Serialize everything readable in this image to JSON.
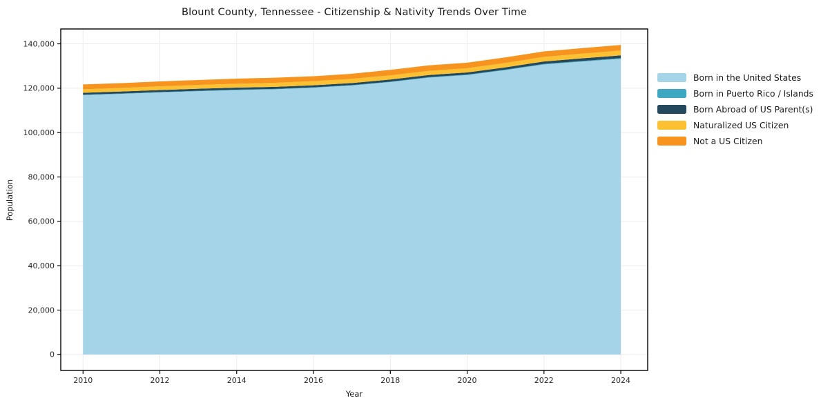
{
  "chart": {
    "title": "Blount County, Tennessee - Citizenship & Nativity Trends Over Time",
    "xlabel": "Year",
    "ylabel": "Population"
  },
  "chart_data": {
    "type": "area",
    "stacked": true,
    "title": "Blount County, Tennessee - Citizenship & Nativity Trends Over Time",
    "xlabel": "Year",
    "ylabel": "Population",
    "x": [
      2010,
      2011,
      2012,
      2013,
      2014,
      2015,
      2016,
      2017,
      2018,
      2019,
      2020,
      2021,
      2022,
      2023,
      2024
    ],
    "series": [
      {
        "name": "Born in the United States",
        "color": "#a5d3e8",
        "values": [
          116900,
          117450,
          118100,
          118650,
          119150,
          119500,
          120200,
          121200,
          122750,
          124750,
          125900,
          128150,
          130700,
          132000,
          133250
        ]
      },
      {
        "name": "Born in Puerto Rico / Islands",
        "color": "#3ea8c2",
        "values": [
          150,
          160,
          170,
          180,
          190,
          200,
          200,
          210,
          220,
          230,
          240,
          250,
          260,
          280,
          300
        ]
      },
      {
        "name": "Born Abroad of US Parent(s)",
        "color": "#25495c",
        "values": [
          900,
          900,
          920,
          930,
          930,
          930,
          930,
          940,
          950,
          960,
          980,
          1000,
          1100,
          1200,
          1250
        ]
      },
      {
        "name": "Naturalized US Citizen",
        "color": "#fcc133",
        "values": [
          1550,
          1600,
          1650,
          1700,
          1750,
          1800,
          1870,
          1870,
          1870,
          1870,
          1900,
          2000,
          2050,
          2100,
          2200
        ]
      },
      {
        "name": "Not a US Citizen",
        "color": "#f7941f",
        "values": [
          2200,
          2200,
          2250,
          2250,
          2300,
          2300,
          2200,
          2300,
          2500,
          2500,
          2500,
          2500,
          2500,
          2500,
          2500
        ]
      }
    ],
    "xticks": [
      2010,
      2012,
      2014,
      2016,
      2018,
      2020,
      2022,
      2024
    ],
    "yticks": [
      0,
      20000,
      40000,
      60000,
      80000,
      100000,
      120000,
      140000
    ],
    "xlim": [
      2009.42,
      2024.7
    ],
    "ylim": [
      -7200,
      146700
    ],
    "grid": true,
    "legend_position": "right",
    "colors": {
      "grid": "#ececec",
      "spine": "#000000",
      "tick_label": "#262626",
      "background": "#ffffff"
    }
  }
}
